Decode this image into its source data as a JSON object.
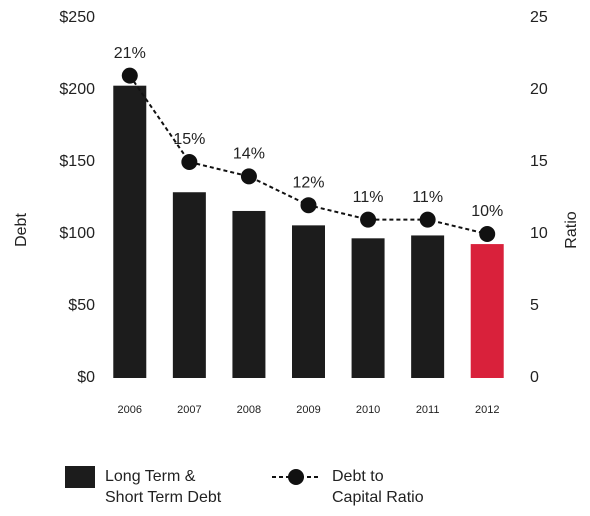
{
  "chart_data": {
    "type": "bar_line",
    "categories": [
      "2006",
      "2007",
      "2008",
      "2009",
      "2010",
      "2011",
      "2012"
    ],
    "series": [
      {
        "name": "Long Term &\nShort Term Debt",
        "type": "bar",
        "color": "#1c1c1c",
        "colors": [
          "#1c1c1c",
          "#1c1c1c",
          "#1c1c1c",
          "#1c1c1c",
          "#1c1c1c",
          "#1c1c1c",
          "#d9213b"
        ],
        "values": [
          203,
          129,
          116,
          106,
          97,
          99,
          93
        ]
      },
      {
        "name": "Debt to\nCapital Ratio",
        "type": "line",
        "axis": "y2",
        "color": "#111111",
        "values": [
          21,
          15,
          14,
          12,
          11,
          11,
          10
        ],
        "value_labels": [
          "21%",
          "15%",
          "14%",
          "12%",
          "11%",
          "11%",
          "10%"
        ]
      }
    ],
    "ylabel": "Debt",
    "y2label": "Ratio",
    "ylim": [
      0,
      250
    ],
    "yticks": [
      {
        "value": 0,
        "label": "$0"
      },
      {
        "value": 50,
        "label": "$50"
      },
      {
        "value": 100,
        "label": "$100"
      },
      {
        "value": 150,
        "label": "$150"
      },
      {
        "value": 200,
        "label": "$200"
      },
      {
        "value": 250,
        "label": "$250"
      }
    ],
    "y2lim": [
      0,
      25
    ],
    "y2ticks": [
      0,
      5,
      10,
      15,
      20,
      25
    ],
    "grid": false
  }
}
